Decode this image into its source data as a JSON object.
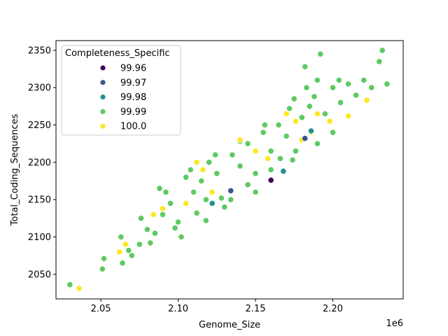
{
  "chart_data": {
    "type": "scatter",
    "xlabel": "Genome_Size",
    "ylabel": "Total_Coding_Sequences",
    "x_offset_label": "1e6",
    "xlim": [
      2.021,
      2.2455
    ],
    "ylim": [
      2017,
      2363
    ],
    "x_ticks": [
      2.05,
      2.1,
      2.15,
      2.2
    ],
    "x_tick_labels": [
      "2.05",
      "2.10",
      "2.15",
      "2.20"
    ],
    "y_ticks": [
      2050,
      2100,
      2150,
      2200,
      2250,
      2300,
      2350
    ],
    "y_tick_labels": [
      "2050",
      "2100",
      "2150",
      "2200",
      "2250",
      "2300",
      "2350"
    ],
    "grid": false,
    "legend": {
      "title": "Completeness_Specific",
      "placement": "top-left",
      "entries": [
        {
          "label": "99.96",
          "color": "#440154"
        },
        {
          "label": "99.97",
          "color": "#3b528b"
        },
        {
          "label": "99.98",
          "color": "#21918c"
        },
        {
          "label": "99.99",
          "color": "#5ec962"
        },
        {
          "label": "100.0",
          "color": "#fde725"
        }
      ]
    },
    "point_edge_color": "#ffffff",
    "series": [
      {
        "name": "99.99",
        "color": "#5ec962",
        "points": [
          [
            2.03,
            2036
          ],
          [
            2.052,
            2071
          ],
          [
            2.051,
            2057
          ],
          [
            2.064,
            2065
          ],
          [
            2.063,
            2100
          ],
          [
            2.07,
            2075
          ],
          [
            2.075,
            2090
          ],
          [
            2.08,
            2110
          ],
          [
            2.085,
            2105
          ],
          [
            2.088,
            2165
          ],
          [
            2.09,
            2130
          ],
          [
            2.095,
            2145
          ],
          [
            2.1,
            2120
          ],
          [
            2.105,
            2180
          ],
          [
            2.11,
            2160
          ],
          [
            2.115,
            2175
          ],
          [
            2.118,
            2150
          ],
          [
            2.12,
            2200
          ],
          [
            2.125,
            2185
          ],
          [
            2.13,
            2140
          ],
          [
            2.135,
            2210
          ],
          [
            2.14,
            2195
          ],
          [
            2.145,
            2225
          ],
          [
            2.15,
            2185
          ],
          [
            2.155,
            2240
          ],
          [
            2.16,
            2215
          ],
          [
            2.165,
            2250
          ],
          [
            2.17,
            2235
          ],
          [
            2.175,
            2285
          ],
          [
            2.18,
            2260
          ],
          [
            2.183,
            2300
          ],
          [
            2.185,
            2275
          ],
          [
            2.19,
            2310
          ],
          [
            2.192,
            2345
          ],
          [
            2.195,
            2265
          ],
          [
            2.2,
            2300
          ],
          [
            2.205,
            2280
          ],
          [
            2.21,
            2305
          ],
          [
            2.215,
            2290
          ],
          [
            2.22,
            2310
          ],
          [
            2.225,
            2300
          ],
          [
            2.23,
            2335
          ],
          [
            2.232,
            2350
          ],
          [
            2.235,
            2305
          ],
          [
            2.182,
            2328
          ],
          [
            2.174,
            2203
          ],
          [
            2.16,
            2190
          ],
          [
            2.145,
            2170
          ],
          [
            2.128,
            2152
          ],
          [
            2.112,
            2132
          ],
          [
            2.098,
            2112
          ],
          [
            2.082,
            2092
          ],
          [
            2.068,
            2082
          ],
          [
            2.076,
            2125
          ],
          [
            2.092,
            2160
          ],
          [
            2.108,
            2190
          ],
          [
            2.124,
            2210
          ],
          [
            2.14,
            2228
          ],
          [
            2.156,
            2250
          ],
          [
            2.172,
            2272
          ],
          [
            2.188,
            2288
          ],
          [
            2.204,
            2310
          ],
          [
            2.2,
            2240
          ],
          [
            2.19,
            2225
          ],
          [
            2.176,
            2215
          ],
          [
            2.166,
            2205
          ],
          [
            2.15,
            2160
          ],
          [
            2.134,
            2150
          ],
          [
            2.118,
            2122
          ],
          [
            2.102,
            2100
          ]
        ]
      },
      {
        "name": "100.0",
        "color": "#fde725",
        "points": [
          [
            2.036,
            2031
          ],
          [
            2.062,
            2080
          ],
          [
            2.066,
            2090
          ],
          [
            2.084,
            2130
          ],
          [
            2.09,
            2138
          ],
          [
            2.105,
            2145
          ],
          [
            2.112,
            2200
          ],
          [
            2.116,
            2190
          ],
          [
            2.122,
            2160
          ],
          [
            2.14,
            2230
          ],
          [
            2.15,
            2215
          ],
          [
            2.158,
            2205
          ],
          [
            2.17,
            2265
          ],
          [
            2.176,
            2255
          ],
          [
            2.186,
            2240
          ],
          [
            2.19,
            2265
          ],
          [
            2.198,
            2255
          ],
          [
            2.21,
            2262
          ],
          [
            2.222,
            2283
          ],
          [
            2.18,
            2230
          ]
        ]
      },
      {
        "name": "99.98",
        "color": "#21918c",
        "points": [
          [
            2.122,
            2145
          ],
          [
            2.168,
            2188
          ],
          [
            2.186,
            2242
          ]
        ]
      },
      {
        "name": "99.97",
        "color": "#3b528b",
        "points": [
          [
            2.182,
            2232
          ],
          [
            2.134,
            2162
          ]
        ]
      },
      {
        "name": "99.96",
        "color": "#440154",
        "points": [
          [
            2.16,
            2176
          ]
        ]
      }
    ]
  }
}
